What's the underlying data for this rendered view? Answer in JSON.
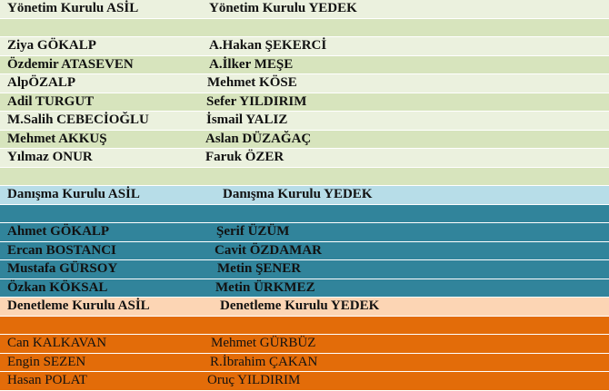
{
  "colors": {
    "green_light": "#ebf1de",
    "green_dark": "#d7e4bd",
    "blue_header": "#b7dde8",
    "teal": "#31849b",
    "peach_header": "#fcd5b4",
    "orange": "#e36c09"
  },
  "yonetim": {
    "asil_header": "Yönetim Kurulu ASİL",
    "yedek_header": "Yönetim Kurulu YEDEK",
    "rows": [
      {
        "asil": "Ziya GÖKALP",
        "yedek": "A.Hakan ŞEKERCİ"
      },
      {
        "asil": "Özdemir ATASEVEN",
        "yedek": "A.İlker MEŞE"
      },
      {
        "asil": "AlpÖZALP",
        "yedek": "Mehmet KÖSE"
      },
      {
        "asil": "Adil TURGUT",
        "yedek": "Sefer YILDIRIM"
      },
      {
        "asil": "M.Salih CEBECİOĞLU",
        "yedek": "İsmail YALIZ"
      },
      {
        "asil": "Mehmet AKKUŞ",
        "yedek": "Aslan DÜZAĞAÇ"
      },
      {
        "asil": "Yılmaz ONUR",
        "yedek": "Faruk ÖZER"
      }
    ]
  },
  "danisma": {
    "asil_header": "Danışma Kurulu ASİL",
    "yedek_header": "Danışma Kurulu YEDEK",
    "rows": [
      {
        "asil": "Ahmet GÖKALP",
        "yedek": "Şerif ÜZÜM"
      },
      {
        "asil": "Ercan BOSTANCI",
        "yedek": "Cavit ÖZDAMAR"
      },
      {
        "asil": "Mustafa GÜRSOY",
        "yedek": "Metin ŞENER"
      },
      {
        "asil": "Özkan KÖKSAL",
        "yedek": "Metin ÜRKMEZ"
      }
    ]
  },
  "denetleme": {
    "asil_header": "Denetleme Kurulu ASİL",
    "yedek_header": "Denetleme Kurulu YEDEK",
    "rows": [
      {
        "asil": "Can KALKAVAN",
        "yedek": "Mehmet GÜRBÜZ"
      },
      {
        "asil": "Engin SEZEN",
        "yedek": "R.İbrahim ÇAKAN"
      },
      {
        "asil": "Hasan POLAT",
        "yedek": "Oruç YILDIRIM"
      }
    ]
  }
}
